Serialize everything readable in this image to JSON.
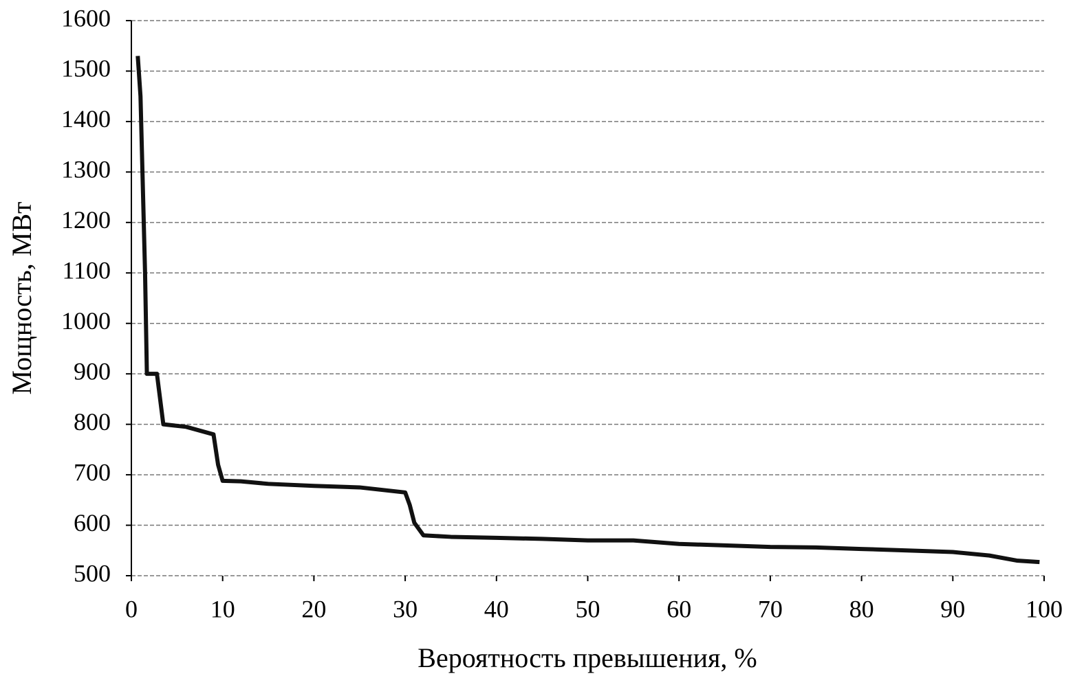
{
  "chart_data": {
    "type": "line",
    "x_label": "Вероятность превышения, %",
    "y_label": "Мощность, МВт",
    "x": [
      0.7,
      1.0,
      1.5,
      1.7,
      2.8,
      3.5,
      6,
      9,
      9.5,
      10,
      12,
      15,
      20,
      25,
      30,
      30.5,
      31,
      32,
      35,
      40,
      45,
      50,
      55,
      60,
      65,
      70,
      75,
      80,
      85,
      90,
      94,
      97,
      99.5
    ],
    "values": [
      1530,
      1450,
      1100,
      900,
      900,
      800,
      795,
      780,
      720,
      688,
      687,
      682,
      678,
      675,
      665,
      640,
      605,
      580,
      577,
      575,
      573,
      570,
      570,
      563,
      560,
      557,
      556,
      553,
      550,
      547,
      540,
      530,
      527
    ],
    "color": "#111111",
    "xlim": [
      0,
      100
    ],
    "xticks": [
      0,
      10,
      20,
      30,
      40,
      50,
      60,
      70,
      80,
      90,
      100
    ],
    "ylim": [
      500,
      1600
    ],
    "yticks": [
      500,
      600,
      700,
      800,
      900,
      1000,
      1100,
      1200,
      1300,
      1400,
      1500,
      1600
    ],
    "grid": true
  }
}
